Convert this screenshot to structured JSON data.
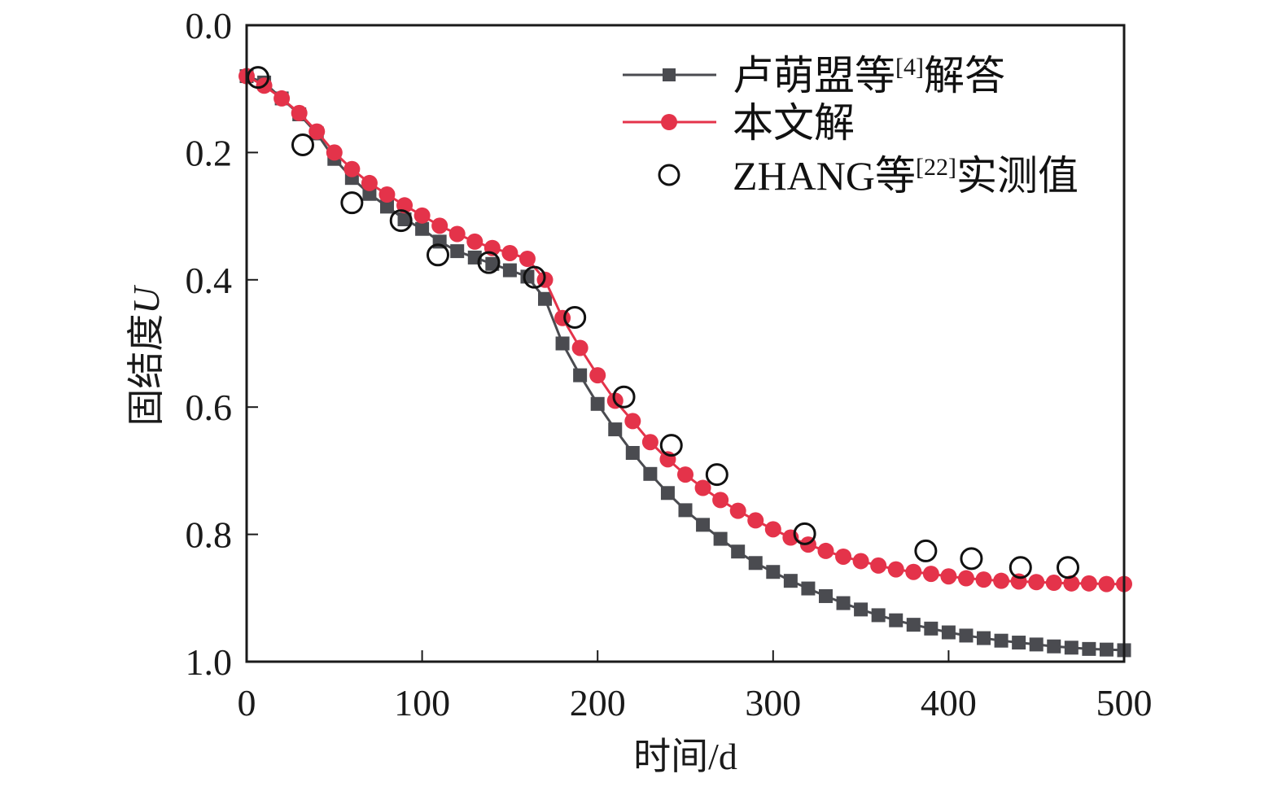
{
  "chart_data": {
    "type": "line",
    "title": "",
    "xlabel": "时间/d",
    "ylabel_main": "固结度",
    "ylabel_var": "U",
    "xlim": [
      0,
      500
    ],
    "ylim": [
      0.0,
      1.0
    ],
    "y_inverted": true,
    "grid": false,
    "x_ticks": [
      0,
      100,
      200,
      300,
      400,
      500
    ],
    "x_tick_labels": [
      "0",
      "100",
      "200",
      "300",
      "400",
      "500"
    ],
    "y_ticks": [
      0.0,
      0.2,
      0.4,
      0.6,
      0.8,
      1.0
    ],
    "y_tick_labels": [
      "0.0",
      "0.2",
      "0.4",
      "0.6",
      "0.8",
      "1.0"
    ],
    "legend_position": "top-right",
    "series": [
      {
        "name": "卢萌盟等[4]解答",
        "legend_main": "卢萌盟等",
        "legend_sup": "[4]",
        "legend_tail": "解答",
        "marker": "square",
        "color": "#4a4b50",
        "x": [
          0,
          10,
          20,
          30,
          40,
          50,
          60,
          70,
          80,
          90,
          100,
          110,
          120,
          130,
          140,
          150,
          160,
          170,
          180,
          190,
          200,
          210,
          220,
          230,
          240,
          250,
          260,
          270,
          280,
          290,
          300,
          310,
          320,
          330,
          340,
          350,
          360,
          370,
          380,
          390,
          400,
          410,
          420,
          430,
          440,
          450,
          460,
          470,
          480,
          490,
          500
        ],
        "values": [
          0.08,
          0.09,
          0.115,
          0.14,
          0.17,
          0.21,
          0.24,
          0.265,
          0.285,
          0.305,
          0.32,
          0.34,
          0.355,
          0.365,
          0.375,
          0.385,
          0.395,
          0.43,
          0.5,
          0.55,
          0.595,
          0.635,
          0.672,
          0.705,
          0.735,
          0.762,
          0.785,
          0.807,
          0.827,
          0.845,
          0.859,
          0.873,
          0.885,
          0.897,
          0.908,
          0.918,
          0.927,
          0.935,
          0.942,
          0.948,
          0.954,
          0.959,
          0.963,
          0.967,
          0.97,
          0.973,
          0.976,
          0.978,
          0.98,
          0.981,
          0.982
        ]
      },
      {
        "name": "本文解",
        "legend_main": "本文解",
        "legend_sup": "",
        "legend_tail": "",
        "marker": "circle-filled",
        "color": "#e4334a",
        "x": [
          0,
          10,
          20,
          30,
          40,
          50,
          60,
          70,
          80,
          90,
          100,
          110,
          120,
          130,
          140,
          150,
          160,
          170,
          180,
          190,
          200,
          210,
          220,
          230,
          240,
          250,
          260,
          270,
          280,
          290,
          300,
          310,
          320,
          330,
          340,
          350,
          360,
          370,
          380,
          390,
          400,
          410,
          420,
          430,
          440,
          450,
          460,
          470,
          480,
          490,
          500
        ],
        "values": [
          0.08,
          0.095,
          0.115,
          0.138,
          0.167,
          0.2,
          0.226,
          0.248,
          0.266,
          0.283,
          0.299,
          0.315,
          0.328,
          0.34,
          0.35,
          0.358,
          0.367,
          0.4,
          0.46,
          0.507,
          0.55,
          0.59,
          0.622,
          0.655,
          0.682,
          0.706,
          0.727,
          0.746,
          0.763,
          0.778,
          0.792,
          0.805,
          0.816,
          0.826,
          0.835,
          0.842,
          0.849,
          0.855,
          0.859,
          0.862,
          0.866,
          0.869,
          0.871,
          0.873,
          0.874,
          0.875,
          0.876,
          0.877,
          0.877,
          0.878,
          0.878
        ]
      },
      {
        "name": "ZHANG等[22]实测值",
        "legend_main": "ZHANG等",
        "legend_sup": "[22]",
        "legend_tail": "实测值",
        "marker": "circle-open",
        "color": "#111111",
        "x": [
          6.5,
          32,
          60,
          88,
          109,
          138,
          164,
          187,
          215,
          242,
          268,
          318,
          387,
          413,
          441,
          468
        ],
        "values": [
          0.082,
          0.188,
          0.279,
          0.307,
          0.361,
          0.373,
          0.396,
          0.459,
          0.584,
          0.66,
          0.706,
          0.799,
          0.826,
          0.838,
          0.852,
          0.852
        ]
      }
    ]
  }
}
